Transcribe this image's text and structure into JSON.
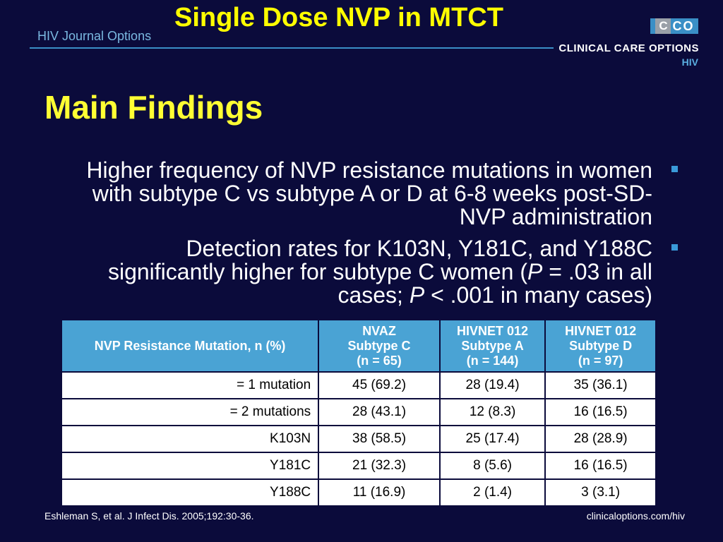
{
  "header": {
    "title": "Single Dose NVP in MTCT",
    "journal": "HIV Journal Options",
    "logo_letters": [
      "C",
      "C",
      "O"
    ],
    "brand": "CLINICAL CARE OPTIONS",
    "brand_sub": "HIV"
  },
  "main": {
    "heading": "Main Findings",
    "bullets": [
      {
        "line1": "Higher frequency of NVP resistance mutations in women",
        "line2": "with subtype C vs subtype A or D at 6-8 weeks post-SD-",
        "line3": "NVP administration"
      },
      {
        "line1": "Detection rates for K103N, Y181C, and Y188C",
        "line2a": "significantly higher for subtype C women (",
        "line2b": "P",
        "line2c": " = .03 in all",
        "line3a": "cases; ",
        "line3b": "P",
        "line3c": " < .001 in many cases)"
      }
    ]
  },
  "table": {
    "headers": [
      [
        "NVP Resistance Mutation, n (%)"
      ],
      [
        "NVAZ",
        "Subtype C",
        "(n = 65)"
      ],
      [
        "HIVNET 012",
        "Subtype A",
        "(n = 144)"
      ],
      [
        "HIVNET 012",
        "Subtype D",
        "(n = 97)"
      ]
    ],
    "rows": [
      [
        "= 1 mutation",
        "45 (69.2)",
        "28 (19.4)",
        "35 (36.1)"
      ],
      [
        "= 2 mutations",
        "28 (43.1)",
        "12 (8.3)",
        "16 (16.5)"
      ],
      [
        "K103N",
        "38 (58.5)",
        "25 (17.4)",
        "28 (28.9)"
      ],
      [
        "Y181C",
        "21 (32.3)",
        "8 (5.6)",
        "16 (16.5)"
      ],
      [
        "Y188C",
        "11 (16.9)",
        "2 (1.4)",
        "3 (3.1)"
      ]
    ]
  },
  "footer": {
    "citation": "Eshleman S, et al. J Infect Dis. 2005;192:30-36.",
    "url": "clinicaloptions.com/hiv"
  },
  "colors": {
    "background": "#0b0b3b",
    "title": "#ffff00",
    "accent": "#4aa3d4"
  }
}
